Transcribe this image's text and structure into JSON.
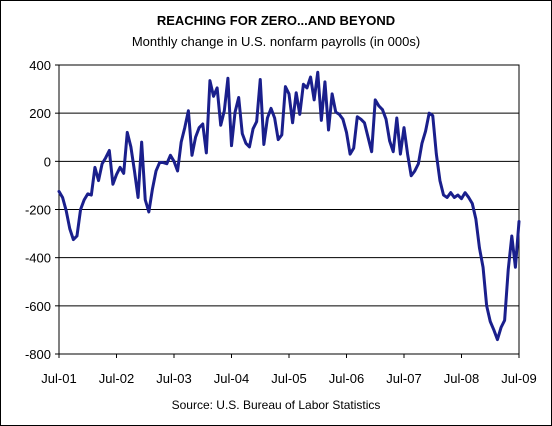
{
  "chart_data": {
    "type": "line",
    "title": "REACHING FOR ZERO...AND BEYOND",
    "subtitle": "Monthly change in U.S. nonfarm payrolls (in 000s)",
    "source": "Source: U.S. Bureau of Labor Statistics",
    "xlabel": "",
    "ylabel": "",
    "ylim": [
      -800,
      400
    ],
    "yticks": [
      400,
      200,
      0,
      -200,
      -400,
      -600,
      -800
    ],
    "ytick_labels": [
      "400",
      "200",
      "0",
      "-200",
      "-400",
      "-600",
      "-800"
    ],
    "xticks": [
      "Jul-01",
      "Jul-02",
      "Jul-03",
      "Jul-04",
      "Jul-05",
      "Jul-06",
      "Jul-07",
      "Jul-08",
      "Jul-09"
    ],
    "x_start": "Jul-01",
    "x_end": "Jul-09",
    "grid": "horizontal",
    "series": [
      {
        "color": "#1a1f8c",
        "values": [
          -125,
          -150,
          -205,
          -280,
          -325,
          -310,
          -200,
          -160,
          -135,
          -140,
          -25,
          -80,
          -10,
          15,
          45,
          -95,
          -55,
          -25,
          -50,
          120,
          60,
          -40,
          -150,
          80,
          -160,
          -210,
          -115,
          -40,
          -5,
          -5,
          -10,
          25,
          0,
          -40,
          80,
          140,
          210,
          25,
          100,
          140,
          155,
          35,
          335,
          270,
          305,
          150,
          210,
          345,
          65,
          205,
          265,
          115,
          75,
          60,
          135,
          165,
          340,
          70,
          180,
          220,
          180,
          90,
          110,
          310,
          280,
          160,
          285,
          195,
          320,
          305,
          350,
          255,
          370,
          170,
          330,
          130,
          280,
          205,
          195,
          175,
          120,
          30,
          55,
          185,
          175,
          160,
          100,
          40,
          255,
          230,
          215,
          175,
          85,
          40,
          180,
          30,
          140,
          30,
          -60,
          -40,
          -10,
          75,
          125,
          200,
          190,
          30,
          -80,
          -140,
          -150,
          -130,
          -150,
          -140,
          -155,
          -130,
          -150,
          -175,
          -240,
          -360,
          -440,
          -600,
          -665,
          -700,
          -740,
          -690,
          -660,
          -450,
          -310,
          -440,
          -250
        ]
      }
    ]
  }
}
